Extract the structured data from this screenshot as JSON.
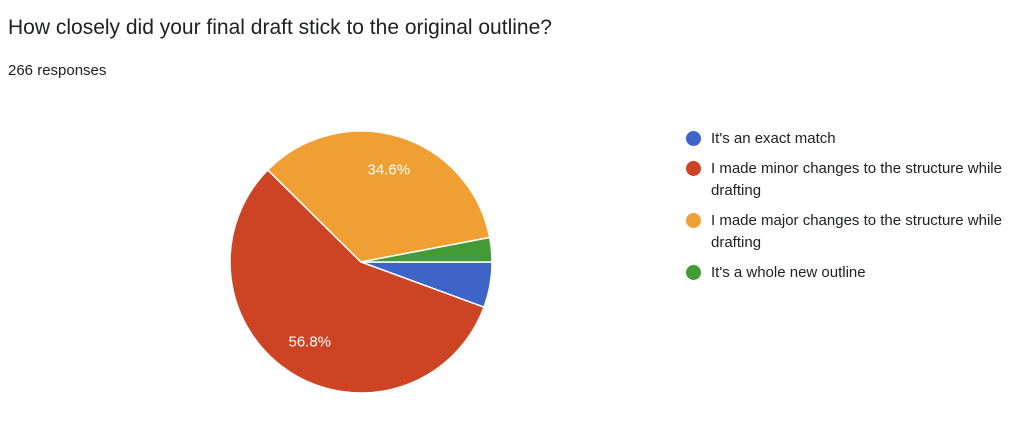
{
  "chart_data": {
    "type": "pie",
    "title": "How closely did your final draft stick to the original outline?",
    "subtitle": "266 responses",
    "categories": [
      "It's an exact match",
      "I made minor changes to the structure while drafting",
      "I made major changes to the structure while drafting",
      "It's a whole new outline"
    ],
    "values": [
      5.6,
      56.8,
      34.6,
      3.0
    ],
    "value_labels": [
      null,
      "56.8%",
      "34.6%",
      null
    ],
    "colors": [
      "#3e64c8",
      "#cc4424",
      "#f0a033",
      "#459a38"
    ],
    "legend": "right"
  }
}
